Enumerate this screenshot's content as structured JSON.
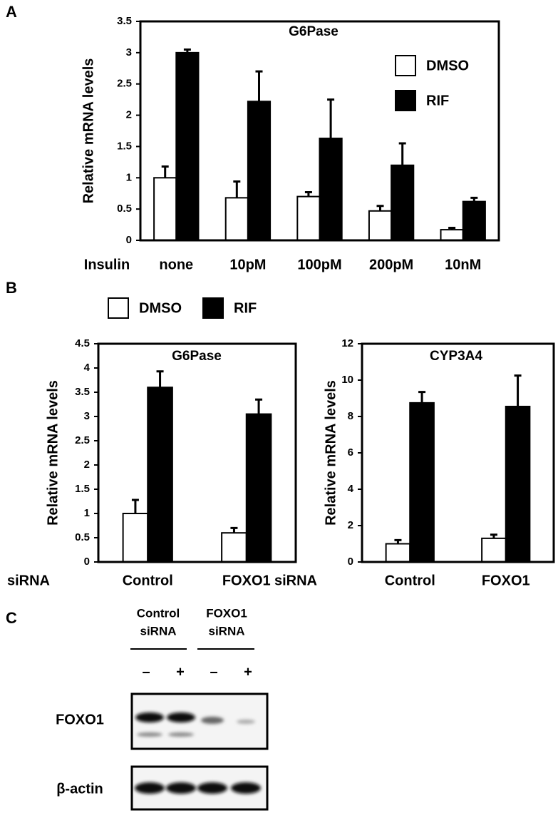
{
  "chart_data": [
    {
      "type": "bar",
      "panel": "A",
      "title": "G6Pase",
      "y_label": "Relative mRNA levels",
      "x_label": "Insulin",
      "categories": [
        "none",
        "10pM",
        "100pM",
        "200pM",
        "10nM"
      ],
      "series": [
        {
          "name": "DMSO",
          "color": "#ffffff",
          "values": [
            1.0,
            0.68,
            0.7,
            0.47,
            0.17
          ],
          "error": [
            0.18,
            0.26,
            0.07,
            0.08,
            0.03
          ]
        },
        {
          "name": "RIF",
          "color": "#000000",
          "values": [
            3.0,
            2.22,
            1.63,
            1.2,
            0.62
          ],
          "error": [
            0.05,
            0.48,
            0.62,
            0.35,
            0.06
          ]
        }
      ],
      "ylim": [
        0,
        3.5
      ],
      "yticks": [
        0,
        0.5,
        1,
        1.5,
        2,
        2.5,
        3,
        3.5
      ],
      "legend": "upper right"
    },
    {
      "type": "bar",
      "panel": "B",
      "title": "G6Pase",
      "y_label": "Relative mRNA levels",
      "x_label": "siRNA",
      "categories": [
        "Control",
        "FOXO1"
      ],
      "series": [
        {
          "name": "DMSO",
          "color": "#ffffff",
          "values": [
            1.0,
            0.6
          ],
          "error": [
            0.28,
            0.1
          ]
        },
        {
          "name": "RIF",
          "color": "#000000",
          "values": [
            3.6,
            3.05
          ],
          "error": [
            0.33,
            0.3
          ]
        }
      ],
      "ylim": [
        0,
        4.5
      ],
      "yticks": [
        0,
        0.5,
        1,
        1.5,
        2,
        2.5,
        3,
        3.5,
        4,
        4.5
      ],
      "legend": "above"
    },
    {
      "type": "bar",
      "title": "CYP3A4",
      "y_label": "Relative mRNA levels",
      "x_label": "siRNA",
      "categories": [
        "Control",
        "FOXO1"
      ],
      "series": [
        {
          "color": "#ffffff",
          "values": [
            1.0,
            1.3
          ],
          "error": [
            0.2,
            0.2
          ]
        },
        {
          "color": "#000000",
          "values": [
            8.75,
            8.55
          ],
          "error": [
            0.6,
            1.7
          ]
        }
      ],
      "ylim": [
        0,
        12
      ],
      "yticks": [
        0,
        2,
        4,
        6,
        8,
        10,
        12
      ]
    }
  ],
  "blot": {
    "panel": "C",
    "groups": [
      {
        "lines": [
          "Control",
          "siRNA"
        ],
        "lanes": [
          "–",
          "+"
        ]
      },
      {
        "lines": [
          "FOXO1",
          "siRNA"
        ],
        "lanes": [
          "–",
          "+"
        ]
      }
    ],
    "rows": [
      "FOXO1",
      "β-actin"
    ]
  }
}
